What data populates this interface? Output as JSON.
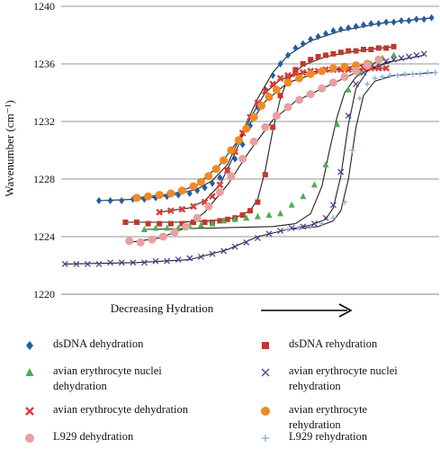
{
  "chart_data": {
    "type": "scatter",
    "ylabel": "Wavenumber (cm⁻¹)",
    "xlabel": "Decreasing Hydration",
    "yticks": [
      1220,
      1224,
      1228,
      1232,
      1236,
      1240
    ],
    "ylim": [
      1220,
      1240
    ],
    "xlim": [
      0,
      100
    ],
    "grid": true,
    "legend_position": "bottom",
    "series": [
      {
        "name": "dsDNA dehydration",
        "marker": "diamond",
        "color": "#1f5fa8",
        "x": [
          10,
          13,
          16,
          19,
          22,
          25,
          28,
          31,
          34,
          36,
          38,
          40,
          42,
          44,
          46,
          48,
          50,
          52,
          54,
          56,
          58,
          60,
          62,
          64,
          66,
          68,
          70,
          72,
          74,
          76,
          78,
          80,
          82,
          84,
          86,
          88,
          90,
          92,
          94,
          96,
          98
        ],
        "y": [
          1226.5,
          1226.5,
          1226.5,
          1226.6,
          1226.6,
          1226.7,
          1226.8,
          1226.9,
          1227.0,
          1227.2,
          1227.4,
          1227.7,
          1228.1,
          1228.6,
          1229.4,
          1230.4,
          1231.7,
          1233.0,
          1234.2,
          1235.2,
          1236.0,
          1236.6,
          1237.1,
          1237.4,
          1237.7,
          1237.9,
          1238.1,
          1238.3,
          1238.4,
          1238.5,
          1238.6,
          1238.7,
          1238.8,
          1238.8,
          1238.9,
          1238.9,
          1239.0,
          1239.0,
          1239.1,
          1239.1,
          1239.2
        ],
        "fit": [
          [
            10,
            1226.5
          ],
          [
            20,
            1226.6
          ],
          [
            30,
            1226.9
          ],
          [
            36,
            1227.3
          ],
          [
            40,
            1227.9
          ],
          [
            44,
            1229.0
          ],
          [
            48,
            1231.3
          ],
          [
            52,
            1233.6
          ],
          [
            56,
            1235.4
          ],
          [
            60,
            1236.6
          ],
          [
            66,
            1237.6
          ],
          [
            74,
            1238.3
          ],
          [
            84,
            1238.8
          ],
          [
            98,
            1239.2
          ]
        ]
      },
      {
        "name": "dsDNA rehydration",
        "marker": "square",
        "color": "#c0392b",
        "x": [
          17,
          20,
          23,
          26,
          29,
          32,
          35,
          38,
          40,
          42,
          44,
          46,
          48,
          50,
          52,
          54,
          56,
          58,
          60,
          62,
          64,
          66,
          68,
          70,
          72,
          74,
          76,
          78,
          80,
          82,
          84,
          86,
          88
        ],
        "y": [
          1225.0,
          1225.0,
          1224.9,
          1224.9,
          1224.9,
          1224.9,
          1225.0,
          1225.0,
          1225.0,
          1225.1,
          1225.2,
          1225.3,
          1225.5,
          1225.8,
          1226.4,
          1228.3,
          1231.6,
          1233.8,
          1235.1,
          1235.6,
          1236.0,
          1236.3,
          1236.5,
          1236.6,
          1236.7,
          1236.8,
          1236.9,
          1236.9,
          1237.0,
          1237.0,
          1237.1,
          1237.1,
          1237.2
        ],
        "fit": [
          [
            17,
            1225.0
          ],
          [
            30,
            1225.0
          ],
          [
            40,
            1225.1
          ],
          [
            46,
            1225.3
          ],
          [
            50,
            1225.8
          ],
          [
            52,
            1226.6
          ],
          [
            54,
            1228.6
          ],
          [
            56,
            1231.4
          ],
          [
            58,
            1233.6
          ],
          [
            60,
            1235.0
          ],
          [
            64,
            1235.9
          ],
          [
            70,
            1236.5
          ],
          [
            78,
            1236.9
          ],
          [
            88,
            1237.2
          ]
        ]
      },
      {
        "name": "avian erythrocyte nuclei dehydration",
        "marker": "triangle",
        "color": "#4caf50",
        "x": [
          22,
          25,
          28,
          31,
          34,
          37,
          40,
          43,
          46,
          49,
          52,
          55,
          58,
          61,
          64,
          67,
          70,
          73,
          76,
          79,
          82,
          85,
          88
        ],
        "y": [
          1224.5,
          1224.6,
          1224.6,
          1224.6,
          1224.7,
          1224.8,
          1224.9,
          1225.1,
          1225.2,
          1225.3,
          1225.4,
          1225.5,
          1225.6,
          1226.2,
          1226.8,
          1227.6,
          1229.0,
          1231.8,
          1234.2,
          1235.4,
          1236.0,
          1236.4,
          1236.6
        ],
        "fit": [
          [
            22,
            1224.5
          ],
          [
            40,
            1224.6
          ],
          [
            56,
            1224.7
          ],
          [
            62,
            1224.9
          ],
          [
            66,
            1225.6
          ],
          [
            69,
            1227.5
          ],
          [
            71,
            1230.0
          ],
          [
            73,
            1232.3
          ],
          [
            75,
            1234.0
          ],
          [
            78,
            1235.1
          ],
          [
            82,
            1235.7
          ],
          [
            88,
            1236.2
          ]
        ]
      },
      {
        "name": "avian erythrocyte nuclei rehydration",
        "marker": "x",
        "color": "#5b3d8f",
        "x": [
          1,
          4,
          7,
          10,
          13,
          16,
          19,
          22,
          25,
          28,
          31,
          34,
          37,
          40,
          43,
          46,
          49,
          52,
          55,
          58,
          61,
          64,
          67,
          70,
          72,
          74,
          76,
          78,
          80,
          82,
          84,
          86,
          88,
          90,
          92,
          94,
          96
        ],
        "y": [
          1222.1,
          1222.1,
          1222.1,
          1222.1,
          1222.2,
          1222.2,
          1222.2,
          1222.2,
          1222.3,
          1222.3,
          1222.4,
          1222.5,
          1222.6,
          1222.8,
          1223.0,
          1223.3,
          1223.6,
          1223.9,
          1224.2,
          1224.4,
          1224.6,
          1224.7,
          1224.9,
          1225.3,
          1226.2,
          1228.5,
          1232.4,
          1234.6,
          1235.4,
          1235.8,
          1236.0,
          1236.2,
          1236.3,
          1236.4,
          1236.5,
          1236.6,
          1236.7
        ],
        "fit": [
          [
            1,
            1222.1
          ],
          [
            20,
            1222.2
          ],
          [
            34,
            1222.4
          ],
          [
            44,
            1223.1
          ],
          [
            52,
            1224.0
          ],
          [
            60,
            1224.5
          ],
          [
            66,
            1224.8
          ],
          [
            70,
            1225.2
          ],
          [
            72,
            1226.0
          ],
          [
            74,
            1228.2
          ],
          [
            76,
            1231.8
          ],
          [
            78,
            1234.3
          ],
          [
            81,
            1235.5
          ],
          [
            86,
            1236.1
          ],
          [
            96,
            1236.6
          ]
        ]
      },
      {
        "name": "avian erythrocyte dehydration",
        "marker": "cross",
        "color": "#e53935",
        "x": [
          26,
          29,
          32,
          35,
          38,
          40,
          42,
          44,
          46,
          48,
          50,
          52,
          54,
          56,
          58,
          60,
          62,
          64,
          66,
          68,
          70,
          72,
          74,
          76,
          78,
          80,
          82,
          84,
          86
        ],
        "y": [
          1225.7,
          1225.8,
          1225.9,
          1226.1,
          1226.4,
          1226.8,
          1227.6,
          1228.6,
          1229.9,
          1231.2,
          1232.3,
          1233.3,
          1234.1,
          1234.6,
          1235.0,
          1235.2,
          1235.3,
          1235.4,
          1235.5,
          1235.5,
          1235.6,
          1235.6,
          1235.6,
          1235.6,
          1235.7,
          1235.7,
          1235.7,
          1235.7,
          1235.7
        ],
        "fit": [
          [
            26,
            1225.7
          ],
          [
            34,
            1226.0
          ],
          [
            38,
            1226.5
          ],
          [
            42,
            1227.6
          ],
          [
            46,
            1229.8
          ],
          [
            50,
            1232.2
          ],
          [
            54,
            1234.0
          ],
          [
            58,
            1234.9
          ],
          [
            64,
            1235.4
          ],
          [
            74,
            1235.6
          ],
          [
            86,
            1235.7
          ]
        ]
      },
      {
        "name": "avian erythrocyte rehydration",
        "marker": "circle",
        "color": "#f08a24",
        "x": [
          20,
          23,
          26,
          29,
          32,
          35,
          37,
          39,
          41,
          43,
          45,
          47,
          49,
          51,
          53,
          55,
          57,
          60,
          63,
          66,
          69,
          72,
          75,
          78,
          81
        ],
        "y": [
          1226.7,
          1226.8,
          1226.9,
          1227.0,
          1227.2,
          1227.5,
          1227.8,
          1228.2,
          1228.7,
          1229.3,
          1230.0,
          1230.7,
          1231.5,
          1232.3,
          1233.1,
          1233.7,
          1234.2,
          1234.7,
          1235.0,
          1235.3,
          1235.5,
          1235.7,
          1235.8,
          1235.9,
          1236.0
        ],
        "fit": [
          [
            20,
            1226.7
          ],
          [
            30,
            1227.0
          ],
          [
            36,
            1227.6
          ],
          [
            42,
            1229.0
          ],
          [
            48,
            1231.1
          ],
          [
            54,
            1233.4
          ],
          [
            60,
            1234.7
          ],
          [
            68,
            1235.4
          ],
          [
            81,
            1236.0
          ]
        ]
      },
      {
        "name": "L929 dehydration",
        "marker": "circle",
        "color": "#e8a0a0",
        "x": [
          18,
          21,
          24,
          27,
          30,
          33,
          36,
          39,
          42,
          45,
          48,
          51,
          54,
          57,
          60,
          63,
          66,
          69,
          72,
          75,
          78,
          81,
          84
        ],
        "y": [
          1223.7,
          1223.6,
          1223.8,
          1224.0,
          1224.3,
          1224.7,
          1225.3,
          1226.1,
          1227.1,
          1228.2,
          1229.4,
          1230.6,
          1231.6,
          1232.4,
          1233.0,
          1233.5,
          1233.9,
          1234.3,
          1234.7,
          1235.1,
          1235.5,
          1235.9,
          1236.3
        ],
        "fit": [
          [
            18,
            1223.6
          ],
          [
            26,
            1223.9
          ],
          [
            32,
            1224.5
          ],
          [
            38,
            1225.7
          ],
          [
            44,
            1227.6
          ],
          [
            50,
            1230.0
          ],
          [
            56,
            1232.1
          ],
          [
            62,
            1233.4
          ],
          [
            70,
            1234.4
          ],
          [
            78,
            1235.4
          ],
          [
            84,
            1236.2
          ]
        ]
      },
      {
        "name": "L929 rehydration",
        "marker": "plus",
        "color": "#8ab4e0",
        "x": [
          60,
          63,
          66,
          69,
          72,
          75,
          77,
          79,
          81,
          83,
          85,
          87,
          89,
          91,
          93,
          95,
          97,
          99
        ],
        "y": [
          1224.5,
          1224.6,
          1224.7,
          1224.9,
          1225.3,
          1226.4,
          1230.0,
          1233.6,
          1234.6,
          1235.0,
          1235.1,
          1235.2,
          1235.2,
          1235.3,
          1235.3,
          1235.3,
          1235.4,
          1235.4
        ],
        "fit": [
          [
            60,
            1224.5
          ],
          [
            68,
            1224.7
          ],
          [
            72,
            1225.1
          ],
          [
            74,
            1225.8
          ],
          [
            76,
            1228.0
          ],
          [
            78,
            1231.6
          ],
          [
            80,
            1233.8
          ],
          [
            83,
            1234.8
          ],
          [
            88,
            1235.2
          ],
          [
            99,
            1235.4
          ]
        ]
      }
    ]
  }
}
